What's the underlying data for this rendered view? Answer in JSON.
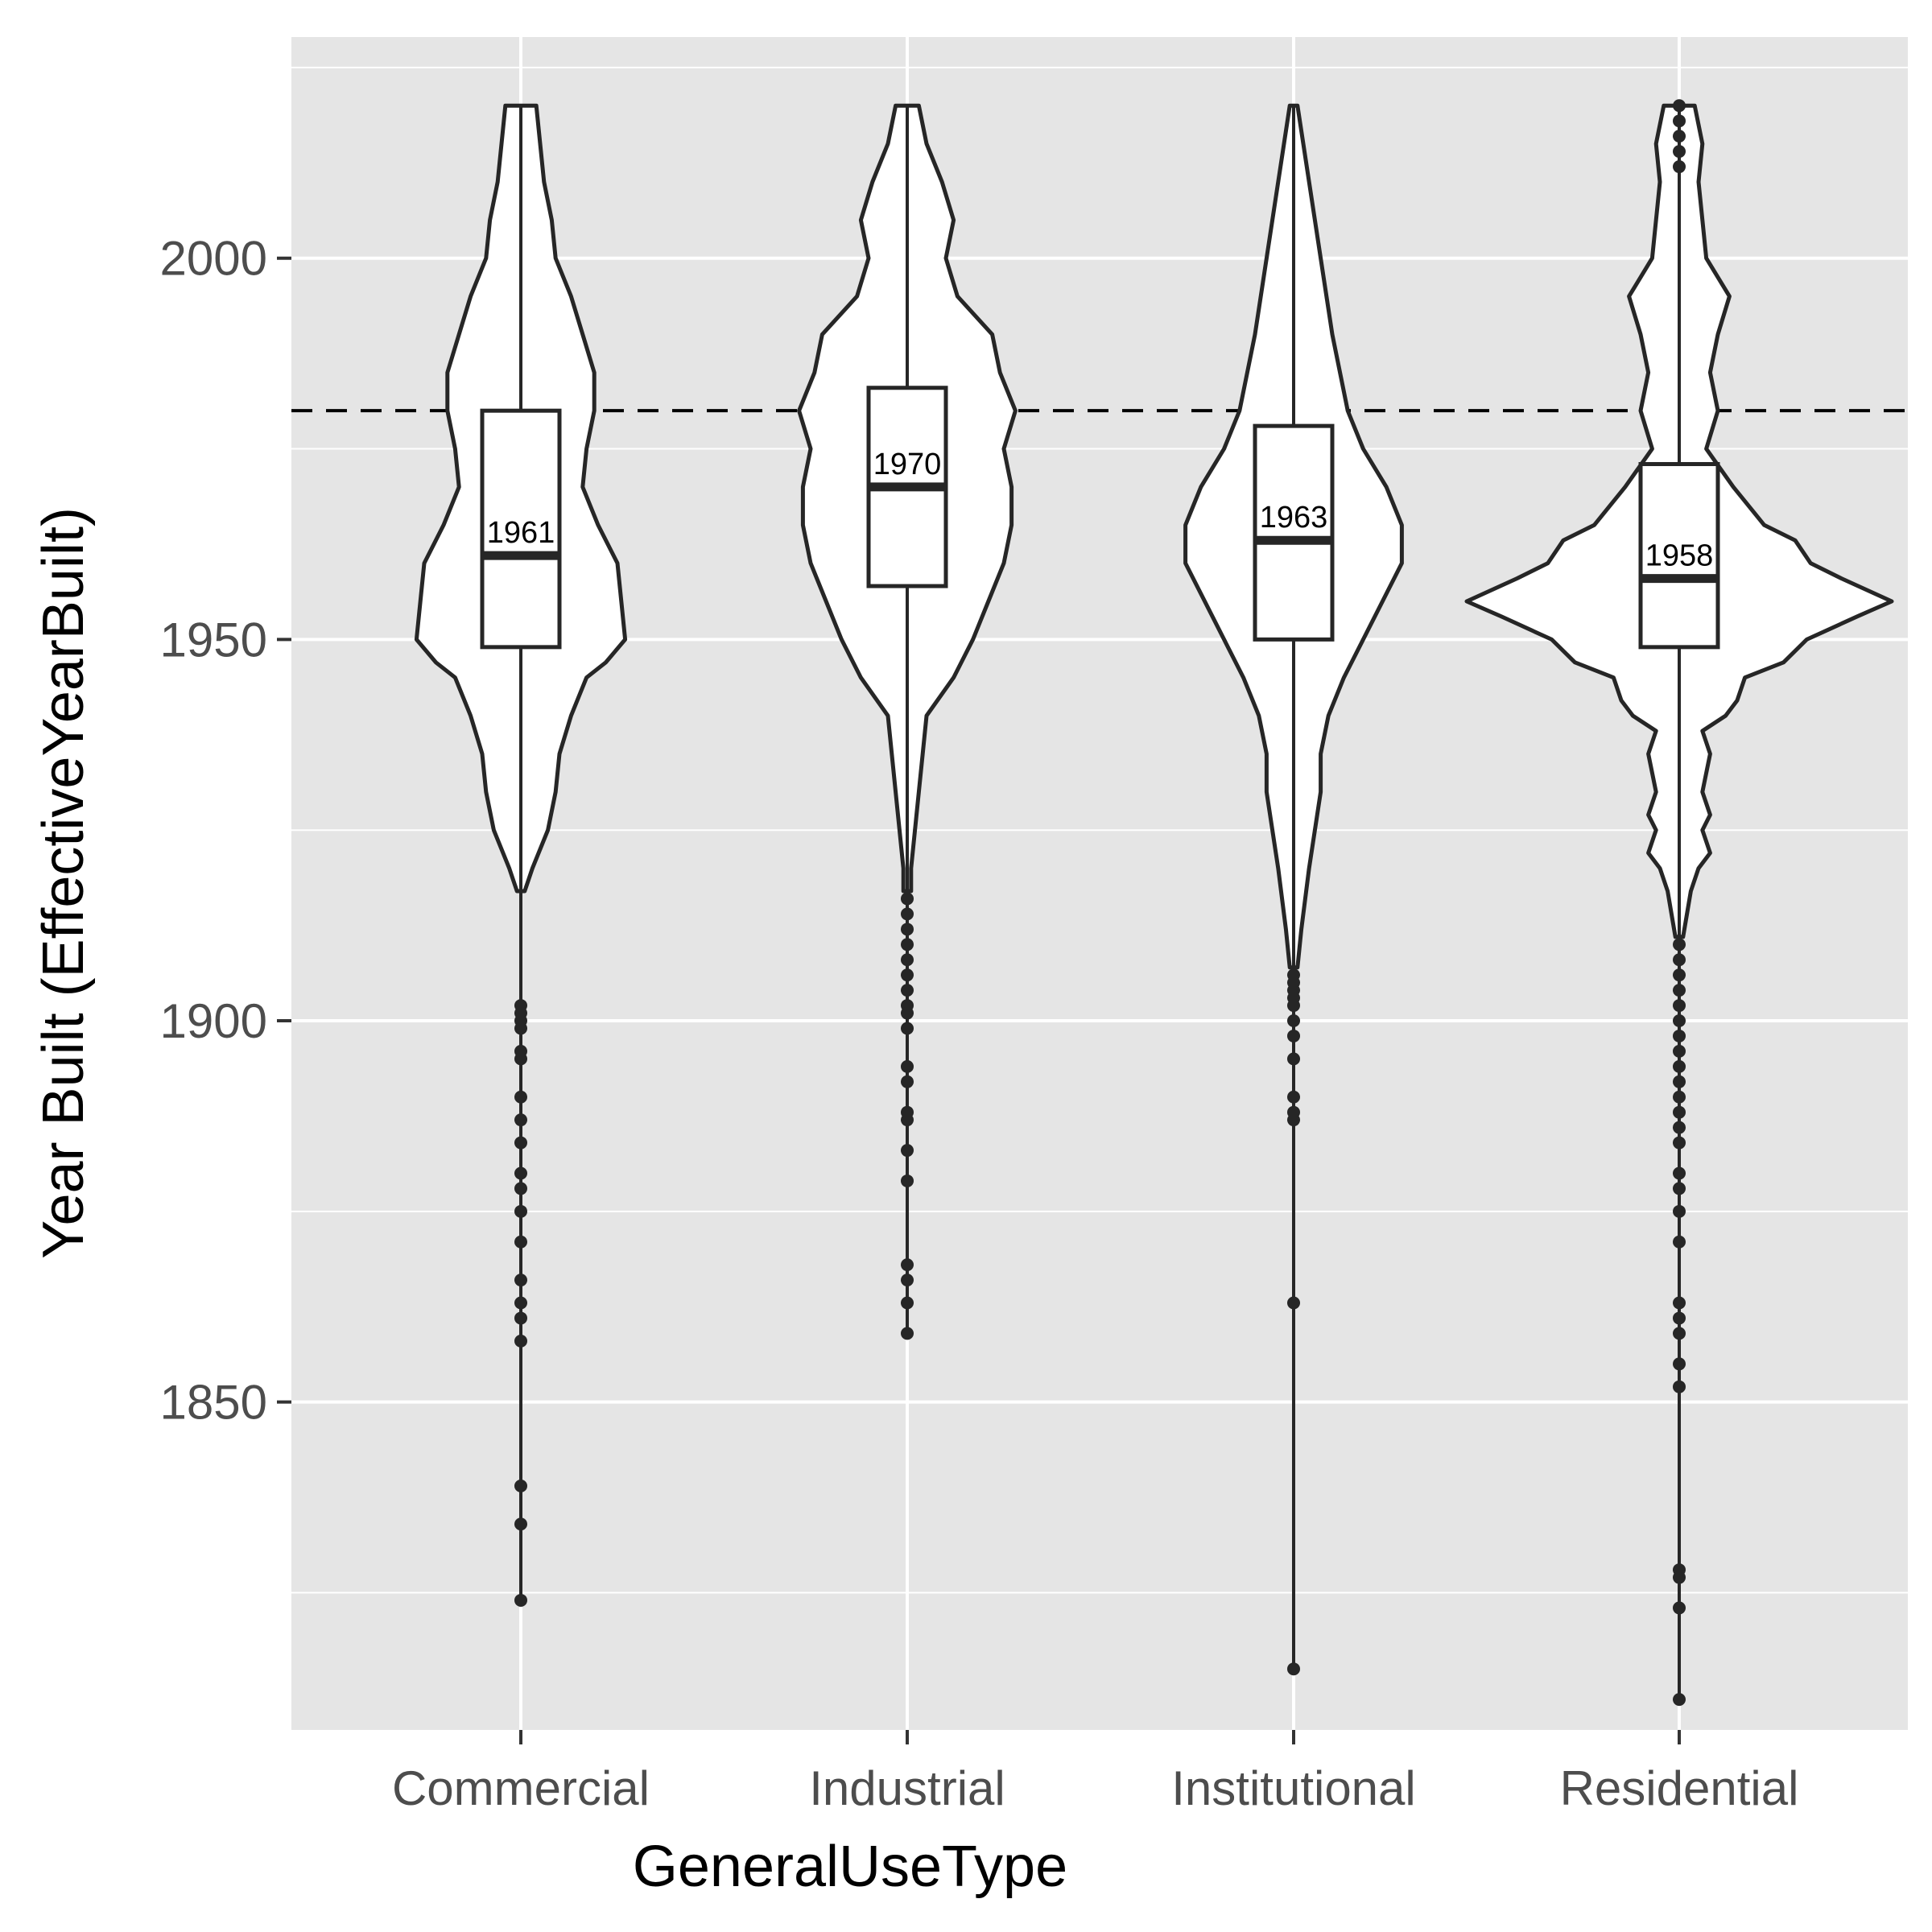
{
  "chart_data": {
    "type": "violin",
    "title": "",
    "xlabel": "GeneralUseType",
    "ylabel": "Year Built (EffectiveYearBuilt)",
    "categories": [
      "Commercial",
      "Industrial",
      "Institutional",
      "Residential"
    ],
    "ylim": [
      1807,
      2029
    ],
    "y_ticks": [
      1850,
      1900,
      1950,
      2000
    ],
    "y_tick_labels": [
      "1850",
      "1900",
      "1950",
      "2000"
    ],
    "y_minor_ticks": [
      1825,
      1875,
      1925,
      1975,
      2025
    ],
    "reference_line": {
      "y": 1980,
      "style": "dashed"
    },
    "grid": true,
    "legend": "none",
    "colors": {
      "panel": "#e5e5e5",
      "grid": "#ffffff",
      "violin_fill": "#ffffff",
      "stroke": "#262626"
    },
    "groups": [
      {
        "category": "Commercial",
        "median_label": "1961",
        "box": {
          "q1": 1949,
          "median": 1961,
          "q3": 1980
        },
        "whisker": {
          "low": 1917,
          "high": 2020
        },
        "outliers": [
          1902,
          1901,
          1900,
          1899,
          1896,
          1895,
          1890,
          1887,
          1884,
          1880,
          1878,
          1875,
          1871,
          1866,
          1863,
          1861,
          1858,
          1839,
          1834,
          1824
        ],
        "violin": {
          "y": [
            2020,
            2015,
            2010,
            2005,
            2000,
            1995,
            1990,
            1985,
            1980,
            1975,
            1970,
            1965,
            1960,
            1955,
            1950,
            1947,
            1945,
            1940,
            1935,
            1930,
            1925,
            1920,
            1917
          ],
          "half_width": [
            0.04,
            0.05,
            0.06,
            0.08,
            0.09,
            0.13,
            0.16,
            0.19,
            0.19,
            0.17,
            0.16,
            0.2,
            0.25,
            0.26,
            0.27,
            0.22,
            0.17,
            0.13,
            0.1,
            0.09,
            0.07,
            0.03,
            0.01
          ]
        }
      },
      {
        "category": "Industrial",
        "median_label": "1970",
        "box": {
          "q1": 1957,
          "median": 1970,
          "q3": 1983
        },
        "whisker": {
          "low": 1917,
          "high": 2020
        },
        "outliers": [
          1916,
          1914,
          1912,
          1910,
          1908,
          1906,
          1904,
          1902,
          1901,
          1899,
          1894,
          1892,
          1888,
          1887,
          1883,
          1879,
          1868,
          1866,
          1863,
          1859
        ],
        "violin": {
          "y": [
            2020,
            2015,
            2010,
            2005,
            2000,
            1995,
            1990,
            1985,
            1980,
            1975,
            1970,
            1965,
            1960,
            1955,
            1950,
            1945,
            1940,
            1935,
            1930,
            1925,
            1920,
            1917
          ],
          "half_width": [
            0.03,
            0.05,
            0.09,
            0.12,
            0.1,
            0.13,
            0.22,
            0.24,
            0.28,
            0.25,
            0.27,
            0.27,
            0.25,
            0.21,
            0.17,
            0.12,
            0.05,
            0.04,
            0.03,
            0.02,
            0.01,
            0.01
          ]
        }
      },
      {
        "category": "Institutional",
        "median_label": "1963",
        "box": {
          "q1": 1950,
          "median": 1963,
          "q3": 1978
        },
        "whisker": {
          "low": 1907,
          "high": 2020
        },
        "outliers": [
          1906,
          1905,
          1904,
          1903,
          1902,
          1900,
          1898,
          1895,
          1890,
          1888,
          1887,
          1863,
          1815
        ],
        "violin": {
          "y": [
            2020,
            2010,
            2000,
            1990,
            1980,
            1975,
            1970,
            1965,
            1960,
            1955,
            1950,
            1945,
            1940,
            1935,
            1930,
            1920,
            1912,
            1907
          ],
          "half_width": [
            0.01,
            0.04,
            0.07,
            0.1,
            0.14,
            0.18,
            0.24,
            0.28,
            0.28,
            0.23,
            0.18,
            0.13,
            0.09,
            0.07,
            0.07,
            0.04,
            0.02,
            0.01
          ]
        }
      },
      {
        "category": "Residential",
        "median_label": "1958",
        "box": {
          "q1": 1949,
          "median": 1958,
          "q3": 1973
        },
        "whisker": {
          "low": 1911,
          "high": 2020
        },
        "outliers": [
          2020,
          2018,
          2016,
          2014,
          2012,
          1910,
          1908,
          1906,
          1904,
          1902,
          1900,
          1898,
          1896,
          1894,
          1892,
          1890,
          1888,
          1886,
          1884,
          1880,
          1878,
          1875,
          1871,
          1863,
          1861,
          1859,
          1855,
          1852,
          1828,
          1827,
          1823,
          1811
        ],
        "violin": {
          "y": [
            2020,
            2015,
            2010,
            2005,
            2000,
            1995,
            1990,
            1985,
            1980,
            1975,
            1970,
            1965,
            1963,
            1960,
            1958,
            1955,
            1953,
            1950,
            1947,
            1945,
            1942,
            1940,
            1938,
            1935,
            1930,
            1927,
            1925,
            1922,
            1920,
            1917,
            1914,
            1911
          ],
          "half_width": [
            0.04,
            0.06,
            0.05,
            0.06,
            0.07,
            0.13,
            0.1,
            0.08,
            0.1,
            0.07,
            0.14,
            0.22,
            0.3,
            0.34,
            0.42,
            0.55,
            0.46,
            0.33,
            0.27,
            0.17,
            0.15,
            0.12,
            0.06,
            0.08,
            0.06,
            0.08,
            0.06,
            0.08,
            0.05,
            0.03,
            0.02,
            0.01
          ]
        }
      }
    ]
  }
}
